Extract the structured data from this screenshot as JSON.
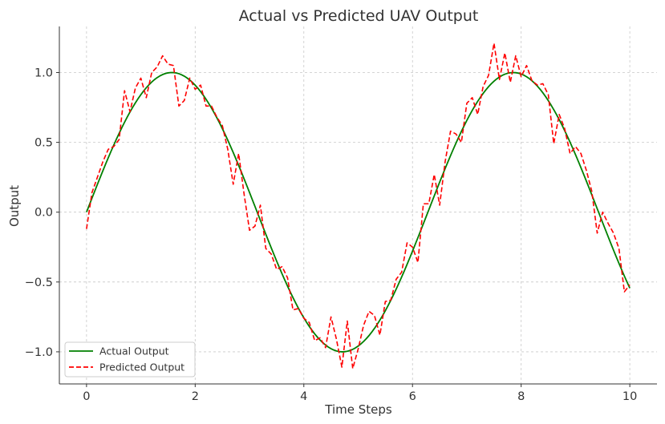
{
  "chart_data": {
    "type": "line",
    "title": "Actual vs Predicted UAV Output",
    "xlabel": "Time Steps",
    "ylabel": "Output",
    "xlim": [
      -0.5,
      10.5
    ],
    "ylim": [
      -1.23,
      1.33
    ],
    "xticks": [
      0,
      2,
      4,
      6,
      8,
      10
    ],
    "xtick_labels": [
      "0",
      "2",
      "4",
      "6",
      "8",
      "10"
    ],
    "yticks": [
      -1.0,
      -0.5,
      0.0,
      0.5,
      1.0
    ],
    "ytick_labels": [
      "−1.0",
      "−0.5",
      "0.0",
      "0.5",
      "1.0"
    ],
    "grid": true,
    "legend_position": "lower-left",
    "series": [
      {
        "name": "Actual Output",
        "style": "solid",
        "color": "#008000",
        "function": "sin",
        "x_range": [
          0,
          10
        ],
        "samples": 200
      },
      {
        "name": "Predicted Output",
        "style": "dashed",
        "color": "#ff0000",
        "x": [
          0.0,
          0.1,
          0.2,
          0.3,
          0.4,
          0.5,
          0.6,
          0.7,
          0.8,
          0.9,
          1.0,
          1.1,
          1.2,
          1.3,
          1.4,
          1.5,
          1.6,
          1.7,
          1.8,
          1.9,
          2.0,
          2.1,
          2.2,
          2.3,
          2.4,
          2.5,
          2.6,
          2.7,
          2.8,
          2.9,
          3.0,
          3.1,
          3.2,
          3.3,
          3.4,
          3.5,
          3.6,
          3.7,
          3.8,
          3.9,
          4.0,
          4.1,
          4.2,
          4.3,
          4.4,
          4.5,
          4.6,
          4.7,
          4.8,
          4.9,
          5.0,
          5.1,
          5.2,
          5.3,
          5.4,
          5.5,
          5.6,
          5.7,
          5.8,
          5.9,
          6.0,
          6.1,
          6.2,
          6.3,
          6.4,
          6.5,
          6.6,
          6.7,
          6.8,
          6.9,
          7.0,
          7.1,
          7.2,
          7.3,
          7.4,
          7.5,
          7.6,
          7.7,
          7.8,
          7.9,
          8.0,
          8.1,
          8.2,
          8.3,
          8.4,
          8.5,
          8.6,
          8.7,
          8.8,
          8.9,
          9.0,
          9.1,
          9.2,
          9.3,
          9.4,
          9.5,
          9.6,
          9.7,
          9.8,
          9.9,
          10.0
        ],
        "y": [
          -0.12,
          0.14,
          0.25,
          0.36,
          0.45,
          0.47,
          0.52,
          0.87,
          0.72,
          0.89,
          0.96,
          0.82,
          1.0,
          1.04,
          1.12,
          1.06,
          1.05,
          0.76,
          0.8,
          0.96,
          0.88,
          0.91,
          0.76,
          0.76,
          0.68,
          0.62,
          0.45,
          0.2,
          0.42,
          0.13,
          -0.13,
          -0.1,
          0.05,
          -0.26,
          -0.3,
          -0.41,
          -0.39,
          -0.47,
          -0.7,
          -0.69,
          -0.76,
          -0.79,
          -0.92,
          -0.9,
          -0.97,
          -0.75,
          -0.91,
          -1.11,
          -0.78,
          -1.12,
          -0.98,
          -0.81,
          -0.71,
          -0.74,
          -0.88,
          -0.64,
          -0.63,
          -0.48,
          -0.43,
          -0.22,
          -0.25,
          -0.36,
          0.06,
          0.06,
          0.27,
          0.05,
          0.36,
          0.58,
          0.56,
          0.5,
          0.78,
          0.82,
          0.7,
          0.9,
          0.98,
          1.21,
          0.95,
          1.14,
          0.93,
          1.12,
          0.97,
          1.05,
          0.94,
          0.91,
          0.92,
          0.84,
          0.49,
          0.7,
          0.6,
          0.42,
          0.47,
          0.42,
          0.3,
          0.15,
          -0.15,
          0.0,
          -0.08,
          -0.15,
          -0.26,
          -0.57,
          -0.52
        ]
      }
    ]
  }
}
